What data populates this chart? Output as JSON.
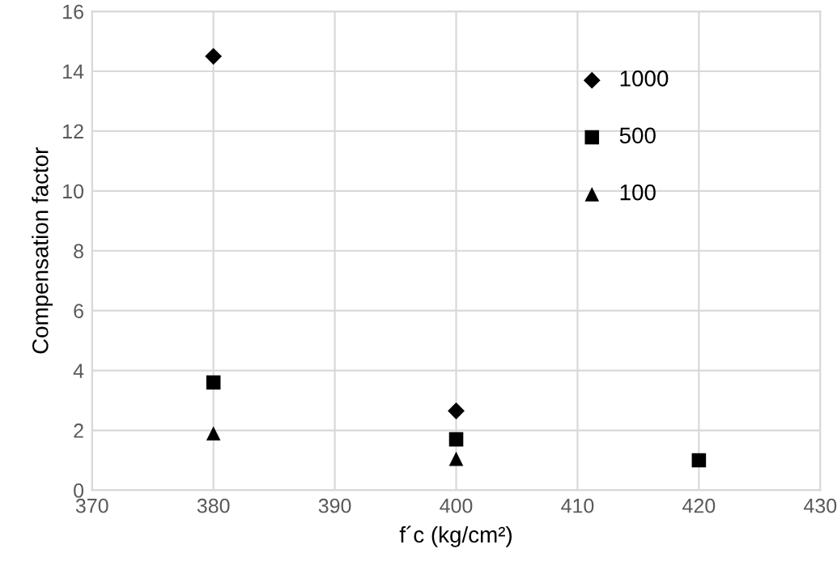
{
  "chart_data": {
    "type": "scatter",
    "xlabel": "f´c (kg/cm²)",
    "ylabel": "Compensation factor",
    "xlim": [
      370,
      430
    ],
    "xticks": [
      370,
      380,
      390,
      400,
      410,
      420,
      430
    ],
    "ylim": [
      0,
      16
    ],
    "yticks": [
      0,
      2,
      4,
      6,
      8,
      10,
      12,
      14,
      16
    ],
    "grid": true,
    "legend": "top right",
    "series": [
      {
        "name": "1000",
        "color": "#000000",
        "marker": "diamond",
        "x": [
          380,
          400
        ],
        "values": [
          14.5,
          2.65
        ]
      },
      {
        "name": "500",
        "color": "#000000",
        "marker": "square",
        "x": [
          380,
          400,
          420
        ],
        "values": [
          3.6,
          1.7,
          1.0
        ]
      },
      {
        "name": "100",
        "color": "#000000",
        "marker": "triangle",
        "x": [
          380,
          400
        ],
        "values": [
          1.9,
          1.05
        ]
      }
    ]
  }
}
